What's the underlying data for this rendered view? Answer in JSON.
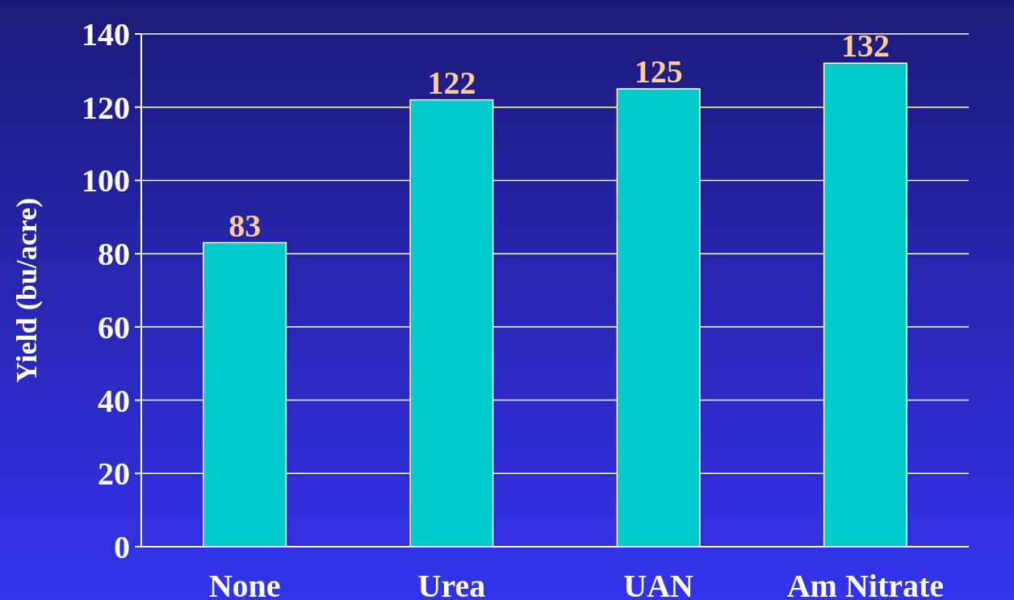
{
  "chart_data": {
    "type": "bar",
    "ylabel": "Yield (bu/acre)",
    "categories": [
      "None",
      "Urea",
      "UAN",
      "Am Nitrate"
    ],
    "values": [
      83,
      122,
      125,
      132
    ],
    "color": "#00cccc",
    "ylim": [
      0,
      140
    ],
    "yticks": [
      0,
      20,
      40,
      60,
      80,
      100,
      120,
      140
    ],
    "grid": "y",
    "data_labels": true
  }
}
